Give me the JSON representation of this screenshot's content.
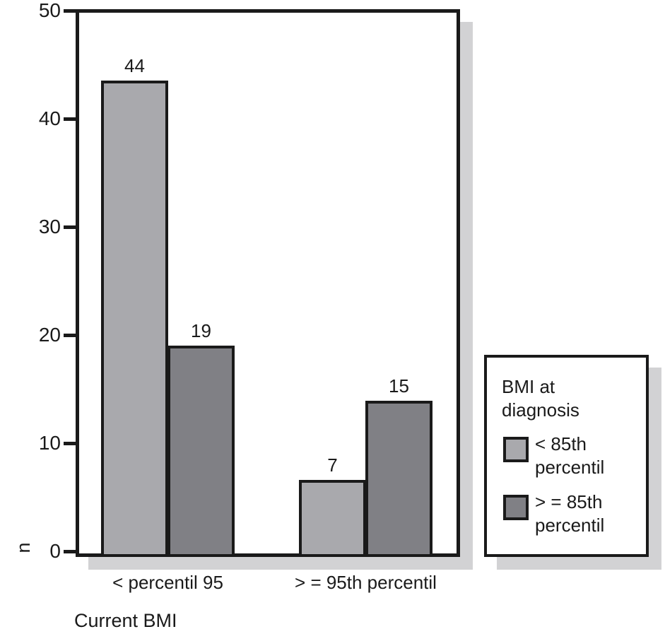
{
  "figure": {
    "background": "#ffffff",
    "line_color": "#1a1a1a",
    "shadow_color": "#d2d2d4",
    "text_color": "#1a1a1a"
  },
  "chart_data": {
    "type": "bar",
    "title": "",
    "xlabel": "Current BMI",
    "ylabel": "n",
    "ylim": [
      0,
      50
    ],
    "yticks": [
      0,
      10,
      20,
      30,
      40,
      50
    ],
    "grid": false,
    "categories": [
      "< percentil 95",
      "> = 95th percentil"
    ],
    "series": [
      {
        "name": "< 85th percentil",
        "color": "#a9a9ad",
        "values": [
          44,
          7
        ],
        "drawn_values": [
          43.5,
          6.6
        ]
      },
      {
        "name": "> = 85th percentil",
        "color": "#808085",
        "values": [
          19,
          15
        ],
        "drawn_values": [
          19,
          13.9
        ]
      }
    ],
    "legend": {
      "title": "BMI at diagnosis",
      "position": "right"
    }
  }
}
